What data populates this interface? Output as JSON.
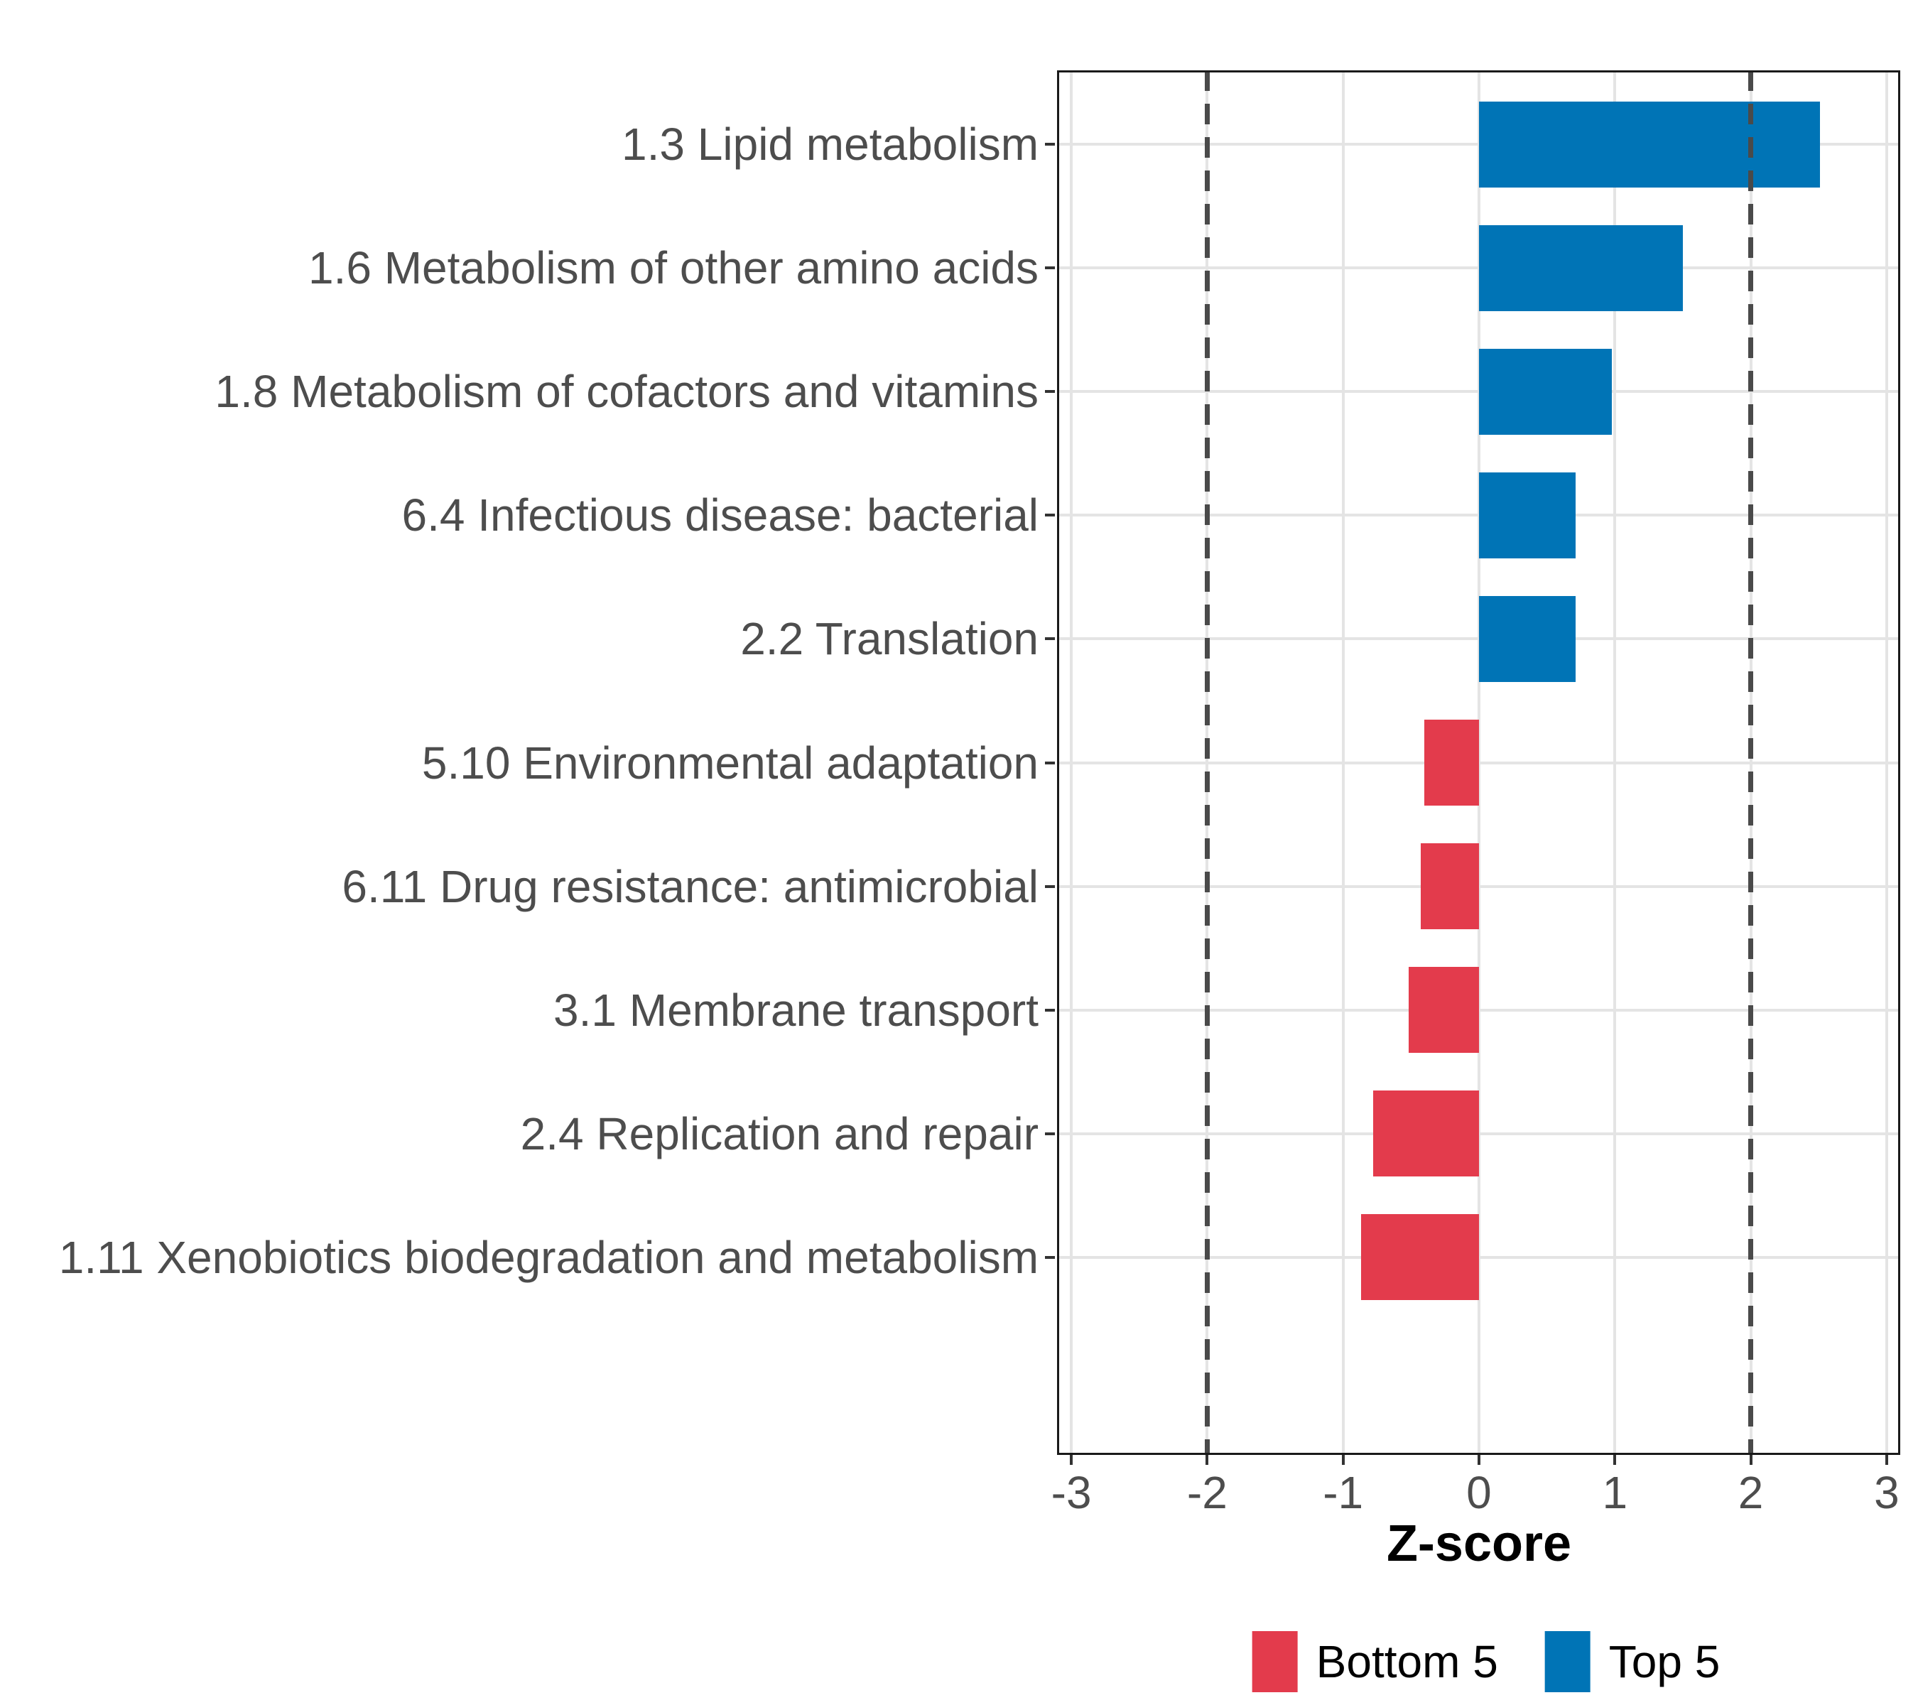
{
  "figure": {
    "background": "#ffffff"
  },
  "chart_data": {
    "type": "bar",
    "orientation": "horizontal",
    "title": "",
    "xlabel": "Z-score",
    "ylabel": "",
    "categories": [
      "1.3 Lipid metabolism",
      "1.6 Metabolism of other amino acids",
      "1.8 Metabolism of cofactors and vitamins",
      "6.4 Infectious disease: bacterial",
      "2.2 Translation",
      "5.10 Environmental adaptation",
      "6.11 Drug resistance: antimicrobial",
      "3.1 Membrane transport",
      "2.4 Replication and repair",
      "1.11 Xenobiotics biodegradation and metabolism"
    ],
    "series": [
      {
        "name": "Z-score",
        "values": [
          2.51,
          1.5,
          0.98,
          0.71,
          0.71,
          -0.4,
          -0.43,
          -0.52,
          -0.78,
          -0.87
        ]
      }
    ],
    "groups": [
      "Top 5",
      "Top 5",
      "Top 5",
      "Top 5",
      "Top 5",
      "Bottom 5",
      "Bottom 5",
      "Bottom 5",
      "Bottom 5",
      "Bottom 5"
    ],
    "colors": {
      "Top 5": "#0074B6",
      "Bottom 5": "#E33B4C"
    },
    "xticks": [
      -3,
      -2,
      -1,
      0,
      1,
      2,
      3
    ],
    "xlim": [
      -3.105,
      3.1
    ],
    "reference_lines": [
      -2,
      2
    ],
    "grid": true,
    "bar_width_fraction": 0.7,
    "legend": {
      "position": "bottom",
      "entries": [
        {
          "label": "Bottom 5",
          "color": "#E33B4C"
        },
        {
          "label": "Top 5",
          "color": "#0074B6"
        }
      ]
    },
    "style": {
      "grid_color": "#e4e4e4",
      "reference_line_color": "#4a4a4a",
      "panel_border_color": "#1a1a1a",
      "axis_text_color": "#4d4d4d",
      "tick_color": "#333333"
    }
  }
}
